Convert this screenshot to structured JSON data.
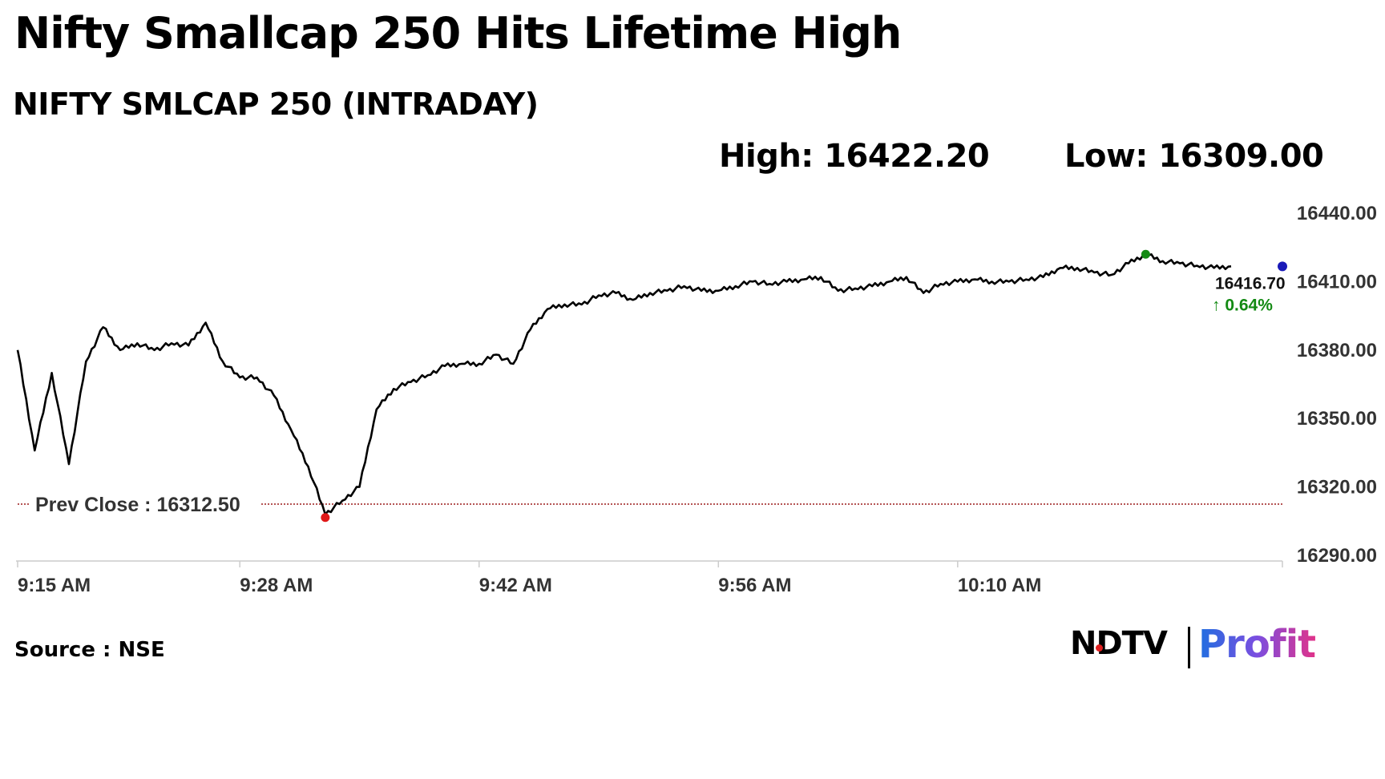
{
  "header": {
    "title": "Nifty Smallcap 250 Hits Lifetime High",
    "subtitle": "NIFTY SMLCAP 250 (INTRADAY)",
    "high_text": "High: 16422.20",
    "low_text": "Low: 16309.00"
  },
  "footer": {
    "source": "Source : NSE",
    "logo_ndtv": "NDTV",
    "logo_profit": "Profit"
  },
  "colors": {
    "line": "#000000",
    "prev_close": "#9b1c1c",
    "high_marker": "#138a13",
    "low_marker": "#e01818",
    "last_marker": "#1a1ab8",
    "change_text": "#138a13"
  },
  "chart_data": {
    "type": "line",
    "title": "NIFTY SMLCAP 250 (INTRADAY)",
    "xlabel": "",
    "ylabel": "",
    "x_ticks": [
      "9:15 AM",
      "9:28 AM",
      "9:42 AM",
      "9:56 AM",
      "10:10 AM"
    ],
    "y_ticks": [
      "16290.00",
      "16320.00",
      "16350.00",
      "16380.00",
      "16410.00",
      "16440.00"
    ],
    "ylim": [
      16290,
      16440
    ],
    "y_axis_position": "right",
    "grid": false,
    "prev_close_label": "Prev Close : 16312.50",
    "prev_close": 16312.5,
    "last_value_label": "16416.70",
    "change_label": "↑ 0.64%",
    "series": [
      {
        "x": [
          "9:15",
          "9:16",
          "9:17",
          "9:18",
          "9:19",
          "9:20",
          "9:21",
          "9:22",
          "9:23",
          "9:24",
          "9:25",
          "9:26",
          "9:27",
          "9:28",
          "9:29",
          "9:30",
          "9:31",
          "9:32",
          "9:33",
          "9:34",
          "9:35",
          "9:36",
          "9:37",
          "9:38",
          "9:39",
          "9:40",
          "9:41",
          "9:42",
          "9:43",
          "9:44",
          "9:45",
          "9:46",
          "9:47",
          "9:48",
          "9:49",
          "9:50",
          "9:51",
          "9:52",
          "9:53",
          "9:54",
          "9:55",
          "9:56",
          "9:57",
          "9:58",
          "9:59",
          "10:00",
          "10:01",
          "10:02",
          "10:03",
          "10:04",
          "10:05",
          "10:06",
          "10:07",
          "10:08",
          "10:09",
          "10:10",
          "10:11",
          "10:12",
          "10:13",
          "10:14",
          "10:15",
          "10:16",
          "10:17",
          "10:18",
          "10:19",
          "10:20",
          "10:21",
          "10:22",
          "10:23",
          "10:24",
          "10:25",
          "10:26"
        ],
        "values": [
          16380,
          16336,
          16370,
          16330,
          16375,
          16390,
          16380,
          16383,
          16380,
          16383,
          16382,
          16392,
          16375,
          16368,
          16368,
          16360,
          16345,
          16329,
          16308,
          16314,
          16320,
          16354,
          16363,
          16366,
          16369,
          16373,
          16374,
          16374,
          16378,
          16374,
          16389,
          16398,
          16400,
          16400,
          16404,
          16405,
          16402,
          16405,
          16406,
          16408,
          16406,
          16406,
          16408,
          16410,
          16409,
          16410,
          16411,
          16412,
          16406,
          16407,
          16408,
          16410,
          16412,
          16405,
          16409,
          16410,
          16411,
          16410,
          16410,
          16411,
          16412,
          16416,
          16416,
          16414,
          16413,
          16418,
          16422,
          16419,
          16418,
          16417,
          16416,
          16416.7
        ]
      }
    ]
  }
}
